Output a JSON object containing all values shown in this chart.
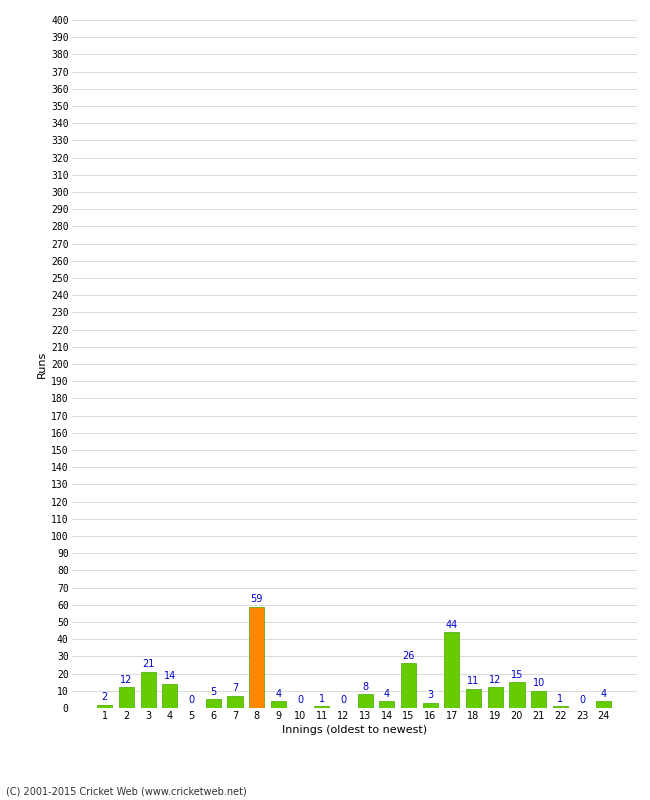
{
  "innings": [
    1,
    2,
    3,
    4,
    5,
    6,
    7,
    8,
    9,
    10,
    11,
    12,
    13,
    14,
    15,
    16,
    17,
    18,
    19,
    20,
    21,
    22,
    23,
    24
  ],
  "runs": [
    2,
    12,
    21,
    14,
    0,
    5,
    7,
    59,
    4,
    0,
    1,
    0,
    8,
    4,
    26,
    3,
    44,
    11,
    12,
    15,
    10,
    1,
    0,
    4
  ],
  "highlight_inning": 8,
  "bar_color_normal": "#66cc00",
  "bar_color_highlight": "#ff8800",
  "bar_edge_color": "#44aa00",
  "label_color": "#0000cc",
  "ylabel": "Runs",
  "xlabel": "Innings (oldest to newest)",
  "ytick_start": 0,
  "ytick_end": 400,
  "ytick_major_step": 10,
  "ylim_max": 400,
  "background_color": "#ffffff",
  "grid_color": "#cccccc",
  "footer": "(C) 2001-2015 Cricket Web (www.cricketweb.net)"
}
